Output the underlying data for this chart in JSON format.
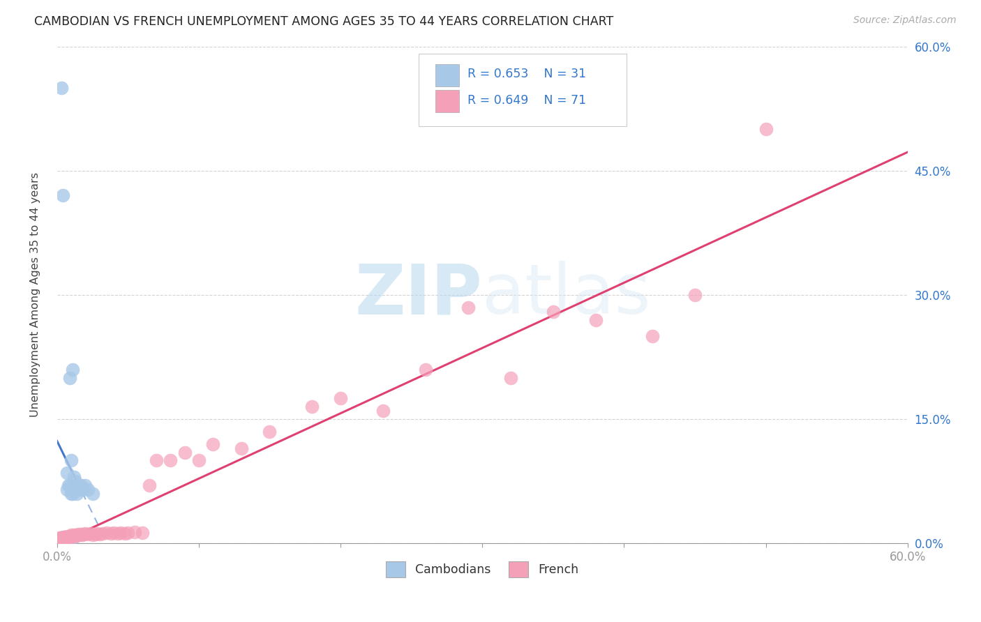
{
  "title": "CAMBODIAN VS FRENCH UNEMPLOYMENT AMONG AGES 35 TO 44 YEARS CORRELATION CHART",
  "source": "Source: ZipAtlas.com",
  "ylabel": "Unemployment Among Ages 35 to 44 years",
  "xlabel": "",
  "xlim": [
    0,
    0.6
  ],
  "ylim": [
    0,
    0.6
  ],
  "xticks": [
    0.0,
    0.1,
    0.2,
    0.3,
    0.4,
    0.5,
    0.6
  ],
  "yticks": [
    0.0,
    0.15,
    0.3,
    0.45,
    0.6
  ],
  "xticklabels_show": [
    "0.0%",
    "60.0%"
  ],
  "yticklabels_right": [
    "0.0%",
    "15.0%",
    "30.0%",
    "45.0%",
    "60.0%"
  ],
  "legend_r_cambodian": "R = 0.653",
  "legend_n_cambodian": "N = 31",
  "legend_r_french": "R = 0.649",
  "legend_n_french": "N = 71",
  "cambodian_color": "#a8c8e8",
  "french_color": "#f4a0b8",
  "cambodian_line_color": "#4477cc",
  "french_line_color": "#e04070",
  "watermark_zip": "ZIP",
  "watermark_atlas": "atlas",
  "cambodian_x": [
    0.002,
    0.003,
    0.003,
    0.004,
    0.004,
    0.005,
    0.005,
    0.006,
    0.006,
    0.007,
    0.007,
    0.008,
    0.008,
    0.009,
    0.009,
    0.01,
    0.01,
    0.011,
    0.011,
    0.012,
    0.012,
    0.013,
    0.013,
    0.014,
    0.015,
    0.016,
    0.017,
    0.018,
    0.02,
    0.022,
    0.025
  ],
  "cambodian_y": [
    0.006,
    0.007,
    0.55,
    0.005,
    0.42,
    0.006,
    0.008,
    0.007,
    0.008,
    0.085,
    0.065,
    0.07,
    0.008,
    0.2,
    0.07,
    0.1,
    0.06,
    0.21,
    0.06,
    0.08,
    0.008,
    0.075,
    0.065,
    0.06,
    0.07,
    0.065,
    0.07,
    0.065,
    0.07,
    0.065,
    0.06
  ],
  "french_x": [
    0.002,
    0.002,
    0.003,
    0.003,
    0.003,
    0.004,
    0.004,
    0.004,
    0.005,
    0.005,
    0.005,
    0.006,
    0.006,
    0.006,
    0.007,
    0.007,
    0.007,
    0.008,
    0.008,
    0.008,
    0.009,
    0.009,
    0.009,
    0.01,
    0.01,
    0.01,
    0.011,
    0.012,
    0.013,
    0.014,
    0.015,
    0.016,
    0.017,
    0.018,
    0.019,
    0.02,
    0.022,
    0.024,
    0.025,
    0.027,
    0.028,
    0.03,
    0.032,
    0.035,
    0.038,
    0.04,
    0.043,
    0.045,
    0.048,
    0.05,
    0.055,
    0.06,
    0.065,
    0.07,
    0.08,
    0.09,
    0.1,
    0.11,
    0.13,
    0.15,
    0.18,
    0.2,
    0.23,
    0.26,
    0.29,
    0.32,
    0.35,
    0.38,
    0.42,
    0.45,
    0.5
  ],
  "french_y": [
    0.006,
    0.007,
    0.005,
    0.006,
    0.007,
    0.005,
    0.006,
    0.007,
    0.006,
    0.007,
    0.008,
    0.006,
    0.007,
    0.008,
    0.006,
    0.007,
    0.008,
    0.007,
    0.008,
    0.009,
    0.007,
    0.008,
    0.009,
    0.008,
    0.009,
    0.01,
    0.009,
    0.01,
    0.009,
    0.01,
    0.011,
    0.01,
    0.011,
    0.01,
    0.011,
    0.012,
    0.011,
    0.012,
    0.01,
    0.011,
    0.012,
    0.011,
    0.012,
    0.013,
    0.012,
    0.013,
    0.012,
    0.013,
    0.012,
    0.013,
    0.014,
    0.013,
    0.07,
    0.1,
    0.1,
    0.11,
    0.1,
    0.12,
    0.115,
    0.135,
    0.165,
    0.175,
    0.16,
    0.21,
    0.285,
    0.2,
    0.28,
    0.27,
    0.25,
    0.3,
    0.5
  ],
  "cam_line_x0": 0.0,
  "cam_line_x_solid_end": 0.013,
  "cam_line_x_dash_end": 0.19,
  "fr_line_x0": 0.0,
  "fr_line_x1": 0.6
}
